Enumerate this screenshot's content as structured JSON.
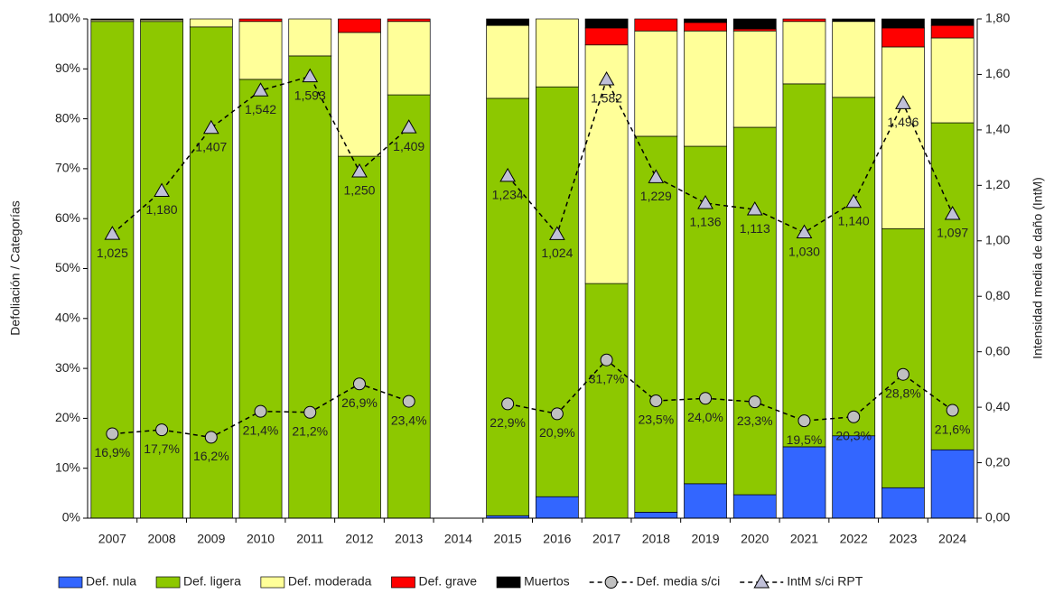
{
  "chart_data": {
    "type": "bar",
    "stacked": true,
    "y_label": "Defoliación / Categorías",
    "y2_label": "Intensidad media de daño (IntM)",
    "categories": [
      "2007",
      "2008",
      "2009",
      "2010",
      "2011",
      "2012",
      "2013",
      "2014",
      "2015",
      "2016",
      "2017",
      "2018",
      "2019",
      "2020",
      "2021",
      "2022",
      "2023",
      "2024"
    ],
    "series": [
      {
        "name": "Def. nula",
        "color": "#3366ff",
        "values": [
          0,
          0,
          0,
          0,
          0,
          0,
          0,
          null,
          0.5,
          4.3,
          0,
          1.2,
          6.9,
          4.7,
          14.3,
          16.5,
          6.1,
          13.7
        ]
      },
      {
        "name": "Def. ligera",
        "color": "#8dc800",
        "values": [
          99.5,
          99.5,
          98.4,
          87.9,
          92.6,
          72.5,
          84.8,
          null,
          83.6,
          82.1,
          47.0,
          75.3,
          67.6,
          73.6,
          72.7,
          67.8,
          51.9,
          65.5
        ]
      },
      {
        "name": "Def. moderada",
        "color": "#ffff99",
        "values": [
          0.3,
          0.3,
          1.6,
          11.6,
          7.4,
          24.8,
          14.7,
          null,
          14.6,
          13.6,
          47.8,
          21.1,
          23.1,
          19.3,
          12.5,
          15.2,
          36.4,
          17.0
        ]
      },
      {
        "name": "Def. grave",
        "color": "#ff0000",
        "values": [
          0,
          0,
          0,
          0.5,
          0,
          2.7,
          0.5,
          null,
          0,
          0,
          3.4,
          2.4,
          1.7,
          0.4,
          0.5,
          0,
          3.8,
          2.5
        ]
      },
      {
        "name": "Muertos",
        "color": "#000000",
        "values": [
          0.2,
          0.2,
          0,
          0,
          0,
          0,
          0,
          null,
          1.3,
          0,
          1.8,
          0,
          0.7,
          2.0,
          0,
          0.5,
          1.8,
          1.3
        ]
      },
      {
        "name": "Def. media s/ci",
        "type": "line",
        "marker": "circle",
        "color": "#000000",
        "marker_color": "#c0c0c0",
        "values": [
          16.9,
          17.7,
          16.2,
          21.4,
          21.2,
          26.9,
          23.4,
          null,
          22.9,
          20.9,
          31.7,
          23.5,
          24.0,
          23.3,
          19.5,
          20.3,
          28.8,
          21.6
        ],
        "value_labels": [
          "16,9%",
          "17,7%",
          "16,2%",
          "21,4%",
          "21,2%",
          "26,9%",
          "23,4%",
          null,
          "22,9%",
          "20,9%",
          "31,7%",
          "23,5%",
          "24,0%",
          "23,3%",
          "19,5%",
          "20,3%",
          "28,8%",
          "21,6%"
        ]
      },
      {
        "name": "IntM s/ci RPT",
        "type": "line",
        "marker": "triangle",
        "axis": "y2",
        "color": "#000000",
        "marker_color": "#c0c0d8",
        "values": [
          1.025,
          1.18,
          1.407,
          1.542,
          1.593,
          1.25,
          1.409,
          null,
          1.234,
          1.024,
          1.582,
          1.229,
          1.136,
          1.113,
          1.03,
          1.14,
          1.496,
          1.097
        ],
        "value_labels": [
          "1,025",
          "1,180",
          "1,407",
          "1,542",
          "1,593",
          "1,250",
          "1,409",
          null,
          "1,234",
          "1,024",
          "1,582",
          "1,229",
          "1,136",
          "1,113",
          "1,030",
          "1,140",
          "1,496",
          "1,097"
        ]
      }
    ],
    "ylim": [
      0,
      100
    ],
    "yticks": [
      {
        "value": 0,
        "label": "0%"
      },
      {
        "value": 10,
        "label": "10%"
      },
      {
        "value": 20,
        "label": "20%"
      },
      {
        "value": 30,
        "label": "30%"
      },
      {
        "value": 40,
        "label": "40%"
      },
      {
        "value": 50,
        "label": "50%"
      },
      {
        "value": 60,
        "label": "60%"
      },
      {
        "value": 70,
        "label": "70%"
      },
      {
        "value": 80,
        "label": "80%"
      },
      {
        "value": 90,
        "label": "90%"
      },
      {
        "value": 100,
        "label": "100%"
      }
    ],
    "y2lim": [
      0,
      1.8
    ],
    "y2ticks": [
      {
        "value": 0,
        "label": "0,00"
      },
      {
        "value": 0.2,
        "label": "0,20"
      },
      {
        "value": 0.4,
        "label": "0,40"
      },
      {
        "value": 0.6,
        "label": "0,60"
      },
      {
        "value": 0.8,
        "label": "0,80"
      },
      {
        "value": 1.0,
        "label": "1,00"
      },
      {
        "value": 1.2,
        "label": "1,20"
      },
      {
        "value": 1.4,
        "label": "1,40"
      },
      {
        "value": 1.6,
        "label": "1,60"
      },
      {
        "value": 1.8,
        "label": "1,80"
      }
    ],
    "legend": "bottom"
  }
}
